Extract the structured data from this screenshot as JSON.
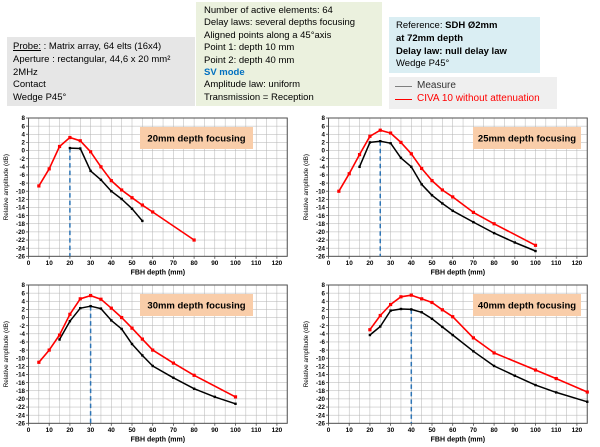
{
  "header": {
    "probe_box": {
      "bg": "#e6e6e6",
      "title": "Probe:",
      "title_suffix": " : Matrix array, 64 elts (16x4)",
      "lines": [
        "Aperture : rectangular, 44,6 x 20 mm²",
        "2MHz",
        "Contact",
        "Wedge P45°"
      ]
    },
    "params_box": {
      "bg": "#ebf1de",
      "lines_before": [
        "Number of active elements: 64",
        "Delay laws: several depths focusing",
        "Aligned points along a 45°axis",
        "Point 1: depth 10 mm",
        "Point 2: depth 40 mm"
      ],
      "sv_mode": "SV mode",
      "sv_mode_color": "#0070c0",
      "lines_after": [
        "Amplitude law: uniform",
        "Transmission = Reception"
      ]
    },
    "reference_box": {
      "bg": "#daeef3",
      "label": "Reference: ",
      "reference_bold": "SDH Ø2mm",
      "depth_bold": "at 72mm  depth",
      "delay_bold": "Delay law: null delay law",
      "wedge": "Wedge P45°"
    }
  },
  "legend": {
    "bg": "#efefef",
    "items": [
      {
        "label": "Measure",
        "swatch_color": "#7f7f7f",
        "text_color": "#333333"
      },
      {
        "label": "CIVA 10 without attenuation",
        "swatch_color": "#ff0000",
        "text_color": "#ff0000"
      }
    ]
  },
  "style": {
    "title_bg": "#f9cda9",
    "title_text": "#1f1f1f",
    "grid_color": "#b3b3b3",
    "axis_color": "#4d4d4d",
    "focus_line_color": "#2e75b6",
    "measure_color": "#000000",
    "civa_color": "#ff0000"
  },
  "chart_data": [
    {
      "type": "line",
      "title": "20mm depth focusing",
      "focus_depth_mm": 20,
      "xlabel": "FBH depth (mm)",
      "ylabel": "Relative amplitude  (dB)",
      "xlim": [
        0,
        125
      ],
      "ylim": [
        -26,
        8
      ],
      "x_ticks": [
        0,
        10,
        20,
        30,
        40,
        50,
        60,
        70,
        80,
        90,
        100,
        110,
        120
      ],
      "y_ticks": [
        8,
        6,
        4,
        2,
        0,
        -2,
        -4,
        -6,
        -8,
        -10,
        -12,
        -14,
        -16,
        -18,
        -20,
        -22,
        -24,
        -26
      ],
      "x_minor_grid_step": 5,
      "series": [
        {
          "name": "Measure",
          "color": "#000000",
          "points": [
            [
              20,
              0.6
            ],
            [
              25,
              0.5
            ],
            [
              30,
              -5
            ],
            [
              35,
              -7.2
            ],
            [
              40,
              -10
            ],
            [
              45,
              -11.9
            ],
            [
              50,
              -14.3
            ],
            [
              55,
              -17.3
            ]
          ]
        },
        {
          "name": "CIVA 10 without attenuation",
          "color": "#ff0000",
          "points": [
            [
              5,
              -8.7
            ],
            [
              10,
              -4.5
            ],
            [
              15,
              1
            ],
            [
              20,
              3.2
            ],
            [
              25,
              2.4
            ],
            [
              30,
              -0.3
            ],
            [
              35,
              -4
            ],
            [
              40,
              -7.4
            ],
            [
              45,
              -9.7
            ],
            [
              50,
              -11.6
            ],
            [
              55,
              -13.4
            ],
            [
              60,
              -15.1
            ],
            [
              80,
              -22
            ]
          ]
        }
      ]
    },
    {
      "type": "line",
      "title": "25mm depth focusing",
      "focus_depth_mm": 25,
      "xlabel": "FBH depth (mm)",
      "ylabel": "Relative amplitude  (dB)",
      "xlim": [
        0,
        125
      ],
      "ylim": [
        -26,
        8
      ],
      "x_ticks": [
        0,
        10,
        20,
        30,
        40,
        50,
        60,
        70,
        80,
        90,
        100,
        110,
        120
      ],
      "y_ticks": [
        8,
        6,
        4,
        2,
        0,
        -2,
        -4,
        -6,
        -8,
        -10,
        -12,
        -14,
        -16,
        -18,
        -20,
        -22,
        -24,
        -26
      ],
      "x_minor_grid_step": 5,
      "series": [
        {
          "name": "Measure",
          "color": "#000000",
          "points": [
            [
              15,
              -4
            ],
            [
              20,
              2
            ],
            [
              25,
              2.3
            ],
            [
              30,
              1.8
            ],
            [
              35,
              -1.8
            ],
            [
              40,
              -4
            ],
            [
              45,
              -8.3
            ],
            [
              50,
              -11
            ],
            [
              55,
              -13
            ],
            [
              60,
              -14.8
            ],
            [
              70,
              -17.6
            ],
            [
              80,
              -20.3
            ],
            [
              90,
              -22.6
            ],
            [
              100,
              -24.7
            ]
          ]
        },
        {
          "name": "CIVA 10 without attenuation",
          "color": "#ff0000",
          "points": [
            [
              5,
              -10
            ],
            [
              10,
              -5.7
            ],
            [
              15,
              -1
            ],
            [
              20,
              3.5
            ],
            [
              25,
              5
            ],
            [
              30,
              4.3
            ],
            [
              35,
              2
            ],
            [
              40,
              -0.8
            ],
            [
              45,
              -4.4
            ],
            [
              50,
              -7.4
            ],
            [
              55,
              -9.7
            ],
            [
              60,
              -11.4
            ],
            [
              70,
              -15.2
            ],
            [
              80,
              -18
            ],
            [
              100,
              -23.3
            ]
          ]
        }
      ]
    },
    {
      "type": "line",
      "title": "30mm depth focusing",
      "focus_depth_mm": 30,
      "xlabel": "FBH depth (mm)",
      "ylabel": "Relative amplitude  (dB)",
      "xlim": [
        0,
        125
      ],
      "ylim": [
        -26,
        8
      ],
      "x_ticks": [
        0,
        10,
        20,
        30,
        40,
        50,
        60,
        70,
        80,
        90,
        100,
        110,
        120
      ],
      "y_ticks": [
        8,
        6,
        4,
        2,
        0,
        -2,
        -4,
        -6,
        -8,
        -10,
        -12,
        -14,
        -16,
        -18,
        -20,
        -22,
        -24,
        -26
      ],
      "x_minor_grid_step": 5,
      "series": [
        {
          "name": "Measure",
          "color": "#000000",
          "points": [
            [
              15,
              -5.4
            ],
            [
              20,
              -0.9
            ],
            [
              25,
              2.3
            ],
            [
              30,
              2.8
            ],
            [
              35,
              2.2
            ],
            [
              40,
              -0.7
            ],
            [
              45,
              -2.8
            ],
            [
              50,
              -6.5
            ],
            [
              55,
              -9.3
            ],
            [
              60,
              -11.9
            ],
            [
              70,
              -14.8
            ],
            [
              80,
              -17.5
            ],
            [
              90,
              -19.5
            ],
            [
              100,
              -21.2
            ]
          ]
        },
        {
          "name": "CIVA 10 without attenuation",
          "color": "#ff0000",
          "points": [
            [
              5,
              -11
            ],
            [
              10,
              -8
            ],
            [
              15,
              -4.3
            ],
            [
              20,
              0.8
            ],
            [
              25,
              4.6
            ],
            [
              30,
              5.4
            ],
            [
              35,
              4.5
            ],
            [
              40,
              2.3
            ],
            [
              45,
              0
            ],
            [
              50,
              -2.6
            ],
            [
              55,
              -5.3
            ],
            [
              60,
              -8
            ],
            [
              70,
              -11.2
            ],
            [
              80,
              -14.2
            ],
            [
              100,
              -19.5
            ]
          ]
        }
      ]
    },
    {
      "type": "line",
      "title": "40mm depth focusing",
      "focus_depth_mm": 40,
      "xlabel": "FBH depth (mm)",
      "ylabel": "Relative amplitude  (dB)",
      "xlim": [
        0,
        125
      ],
      "ylim": [
        -26,
        8
      ],
      "x_ticks": [
        0,
        10,
        20,
        30,
        40,
        50,
        60,
        70,
        80,
        90,
        100,
        110,
        120
      ],
      "y_ticks": [
        8,
        6,
        4,
        2,
        0,
        -2,
        -4,
        -6,
        -8,
        -10,
        -12,
        -14,
        -16,
        -18,
        -20,
        -22,
        -24,
        -26
      ],
      "x_minor_grid_step": 5,
      "series": [
        {
          "name": "Measure",
          "color": "#000000",
          "points": [
            [
              20,
              -4.3
            ],
            [
              25,
              -2.2
            ],
            [
              30,
              1.7
            ],
            [
              35,
              2.1
            ],
            [
              40,
              2
            ],
            [
              45,
              1.3
            ],
            [
              50,
              -0.3
            ],
            [
              55,
              -2.3
            ],
            [
              60,
              -4.3
            ],
            [
              70,
              -8.3
            ],
            [
              80,
              -11.9
            ],
            [
              90,
              -14.3
            ],
            [
              100,
              -16.6
            ],
            [
              110,
              -18.4
            ],
            [
              125,
              -20.7
            ]
          ]
        },
        {
          "name": "CIVA 10 without attenuation",
          "color": "#ff0000",
          "points": [
            [
              20,
              -3
            ],
            [
              25,
              0.5
            ],
            [
              30,
              3.2
            ],
            [
              35,
              5.1
            ],
            [
              40,
              5.5
            ],
            [
              45,
              4.6
            ],
            [
              50,
              3.7
            ],
            [
              55,
              1.9
            ],
            [
              60,
              0.2
            ],
            [
              70,
              -5
            ],
            [
              80,
              -8.7
            ],
            [
              100,
              -12.9
            ],
            [
              110,
              -15
            ],
            [
              125,
              -18.3
            ]
          ]
        }
      ]
    }
  ]
}
